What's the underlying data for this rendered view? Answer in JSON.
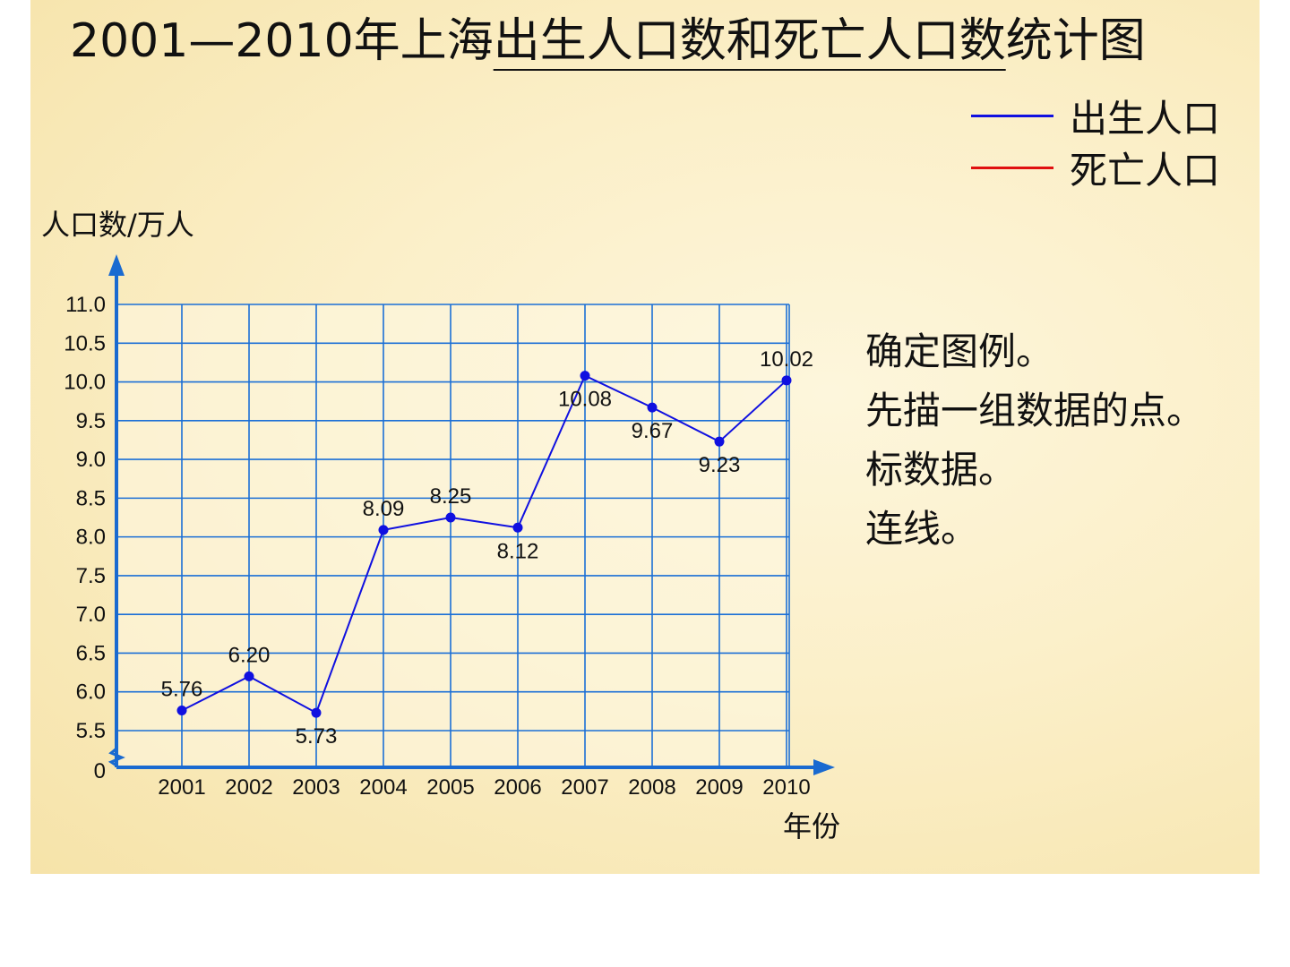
{
  "title": {
    "prefix": "2001—2010年上海",
    "underlined": "出生人口数和死亡人口数",
    "suffix": "统计图"
  },
  "legend": [
    {
      "label": "出生人口",
      "color": "#1010e0"
    },
    {
      "label": "死亡人口",
      "color": "#e01010"
    }
  ],
  "notes": [
    "确定图例。",
    "先描一组数据的点。",
    "标数据。",
    "连线。"
  ],
  "chart_data": {
    "type": "line",
    "xlabel": "年份",
    "ylabel": "人口数/万人",
    "categories": [
      "2001",
      "2002",
      "2003",
      "2004",
      "2005",
      "2006",
      "2007",
      "2008",
      "2009",
      "2010"
    ],
    "y_ticks": [
      "11.0",
      "10.5",
      "10.0",
      "9.5",
      "9.0",
      "8.5",
      "8.0",
      "7.5",
      "7.0",
      "6.5",
      "6.0",
      "5.5",
      "0"
    ],
    "ylim": [
      5.5,
      11.0
    ],
    "axis_break": true,
    "grid": true,
    "legend_position": "top-right",
    "series": [
      {
        "name": "出生人口",
        "color": "#1010e0",
        "values": [
          5.76,
          6.2,
          5.73,
          8.09,
          8.25,
          8.12,
          10.08,
          9.67,
          9.23,
          10.02
        ],
        "labels": [
          "5.76",
          "6.20",
          "5.73",
          "8.09",
          "8.25",
          "8.12",
          "10.08",
          "9.67",
          "9.23",
          "10.02"
        ]
      }
    ]
  }
}
